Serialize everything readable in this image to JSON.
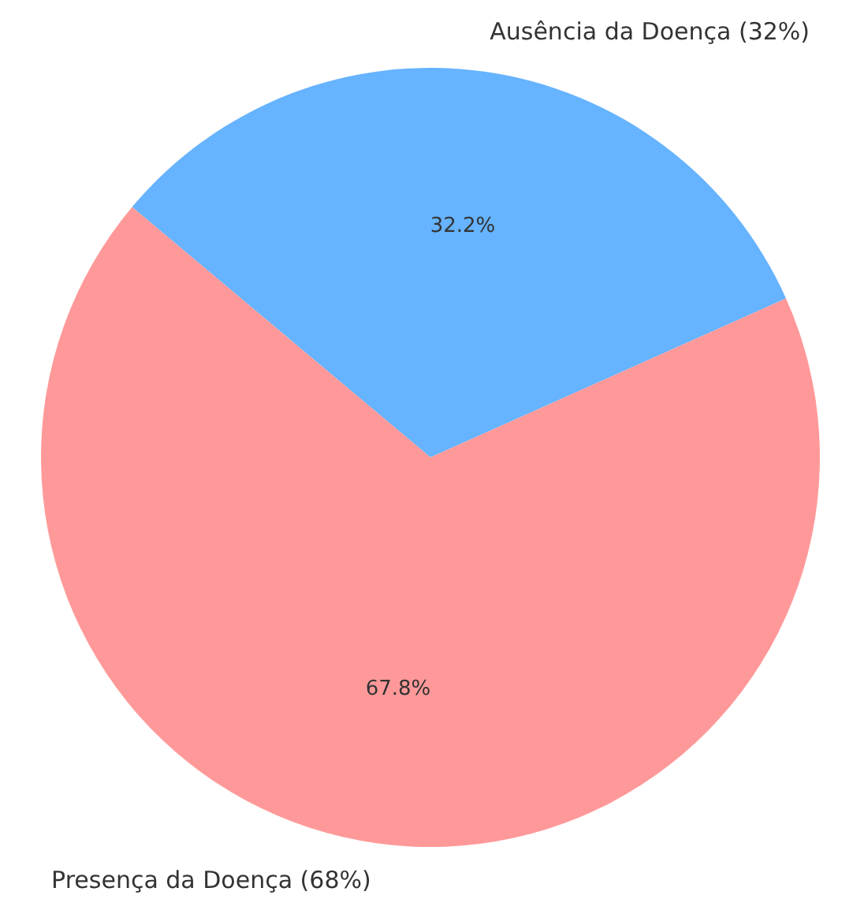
{
  "chart_data": {
    "type": "pie",
    "categories": [
      "Ausência da Doença (32%)",
      "Presença da Doença (68%)"
    ],
    "values": [
      32.2,
      67.8
    ],
    "colors": [
      "#66b3ff",
      "#ff9999"
    ],
    "value_labels": [
      "32.2%",
      "67.8%"
    ]
  }
}
